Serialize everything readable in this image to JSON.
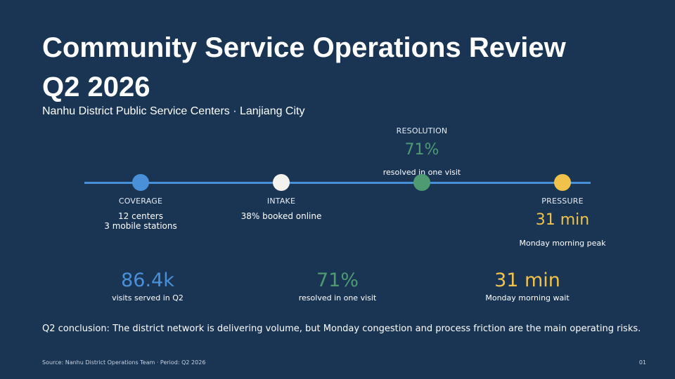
{
  "title_line1": "Community Service Operations Review",
  "title_line2": "Q2 2026",
  "subtitle": "Nanhu District Public Service Centers · Lanjiang City",
  "colors": {
    "background": "#1a3554",
    "line": "#4a90d9",
    "coverage": "#4a90d9",
    "intake": "#f2f2ee",
    "resolution": "#4e9a73",
    "pressure": "#f0c24c"
  },
  "timeline": {
    "coverage": {
      "label": "COVERAGE",
      "line1": "12 centers",
      "line2": "3 mobile stations"
    },
    "intake": {
      "label": "INTAKE",
      "text": "38% booked online"
    },
    "resolution": {
      "label": "RESOLUTION",
      "value": "71%",
      "text": "resolved in one visit"
    },
    "pressure": {
      "label": "PRESSURE",
      "value": "31 min",
      "text": "Monday morning peak"
    }
  },
  "stats": [
    {
      "value": "86.4k",
      "caption": "visits served in Q2"
    },
    {
      "value": "71%",
      "caption": "resolved in one visit"
    },
    {
      "value": "31 min",
      "caption": "Monday morning wait"
    }
  ],
  "conclusion": "Q2 conclusion: The district network is delivering volume, but Monday congestion and process friction are the main operating risks.",
  "footer": {
    "source": "Source: Nanhu District Operations Team · Period: Q2 2026",
    "page": "01"
  }
}
